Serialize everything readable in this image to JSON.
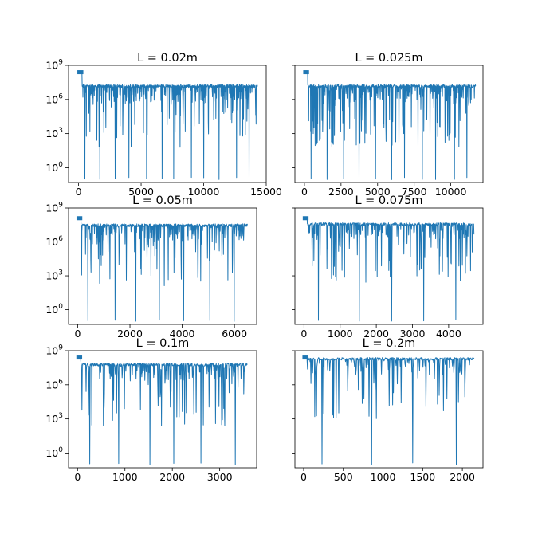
{
  "chart_data": [
    {
      "type": "line",
      "title": "L = 0.02m",
      "xlim": [
        -800,
        15000
      ],
      "ylim_exp": [
        -1.3,
        9
      ],
      "yscale": "log",
      "x_ticks": [
        "0",
        "5000",
        "10000",
        "15000"
      ],
      "x_tick_values": [
        0,
        5000,
        10000,
        15000
      ],
      "y_ticks": [
        "10^0",
        "10^3",
        "10^6",
        "10^9"
      ],
      "y_tick_values_exp": [
        0,
        3,
        6,
        9
      ],
      "y_tick_labels_shown": true,
      "x_max": 14300,
      "baseline_exp": 7.3,
      "start_exp": 8.4,
      "n_points": 900,
      "deep_dips": 12,
      "seed": 11
    },
    {
      "type": "line",
      "title": "L = 0.025m",
      "xlim": [
        -650,
        12200
      ],
      "ylim_exp": [
        -1.3,
        9
      ],
      "yscale": "log",
      "x_ticks": [
        "0",
        "2500",
        "5000",
        "7500",
        "10000"
      ],
      "x_tick_values": [
        0,
        2500,
        5000,
        7500,
        10000
      ],
      "y_ticks": [
        "10^0",
        "10^3",
        "10^6",
        "10^9"
      ],
      "y_tick_values_exp": [
        0,
        3,
        6,
        9
      ],
      "y_tick_labels_shown": false,
      "x_max": 11700,
      "baseline_exp": 7.3,
      "start_exp": 8.4,
      "n_points": 800,
      "deep_dips": 11,
      "seed": 23
    },
    {
      "type": "line",
      "title": "L = 0.05m",
      "xlim": [
        -350,
        6850
      ],
      "ylim_exp": [
        -1.3,
        9
      ],
      "yscale": "log",
      "x_ticks": [
        "0",
        "2000",
        "4000",
        "6000"
      ],
      "x_tick_values": [
        0,
        2000,
        4000,
        6000
      ],
      "y_ticks": [
        "10^0",
        "10^3",
        "10^6",
        "10^9"
      ],
      "y_tick_values_exp": [
        0,
        3,
        6,
        9
      ],
      "y_tick_labels_shown": true,
      "x_max": 6500,
      "baseline_exp": 7.6,
      "start_exp": 8.1,
      "n_points": 650,
      "deep_dips": 7,
      "seed": 37
    },
    {
      "type": "line",
      "title": "L = 0.075m",
      "xlim": [
        -250,
        4950
      ],
      "ylim_exp": [
        -1.3,
        9
      ],
      "yscale": "log",
      "x_ticks": [
        "0",
        "1000",
        "2000",
        "3000",
        "4000"
      ],
      "x_tick_values": [
        0,
        1000,
        2000,
        3000,
        4000
      ],
      "y_ticks": [
        "10^0",
        "10^3",
        "10^6",
        "10^9"
      ],
      "y_tick_values_exp": [
        0,
        3,
        6,
        9
      ],
      "y_tick_labels_shown": false,
      "x_max": 4700,
      "baseline_exp": 7.7,
      "start_exp": 8.1,
      "n_points": 600,
      "deep_dips": 5,
      "seed": 51
    },
    {
      "type": "line",
      "title": "L = 0.1m",
      "xlim": [
        -190,
        3780
      ],
      "ylim_exp": [
        -1.3,
        9
      ],
      "yscale": "log",
      "x_ticks": [
        "0",
        "1000",
        "2000",
        "3000"
      ],
      "x_tick_values": [
        0,
        1000,
        2000,
        3000
      ],
      "y_ticks": [
        "10^0",
        "10^3",
        "10^6",
        "10^9"
      ],
      "y_tick_values_exp": [
        0,
        3,
        6,
        9
      ],
      "y_tick_labels_shown": true,
      "x_max": 3580,
      "baseline_exp": 7.9,
      "start_exp": 8.4,
      "n_points": 500,
      "deep_dips": 6,
      "seed": 67
    },
    {
      "type": "line",
      "title": "L = 0.2m",
      "xlim": [
        -110,
        2260
      ],
      "ylim_exp": [
        -1.3,
        9
      ],
      "yscale": "log",
      "x_ticks": [
        "0",
        "500",
        "1000",
        "1500",
        "2000"
      ],
      "x_tick_values": [
        0,
        500,
        1000,
        1500,
        2000
      ],
      "y_ticks": [
        "10^0",
        "10^3",
        "10^6",
        "10^9"
      ],
      "y_tick_values_exp": [
        0,
        3,
        6,
        9
      ],
      "y_tick_labels_shown": false,
      "x_max": 2150,
      "baseline_exp": 8.4,
      "start_exp": 8.4,
      "n_points": 400,
      "deep_dips": 4,
      "seed": 83
    }
  ],
  "colors": {
    "series": "#1f77b4",
    "axes": "#000000",
    "background": "#ffffff"
  }
}
